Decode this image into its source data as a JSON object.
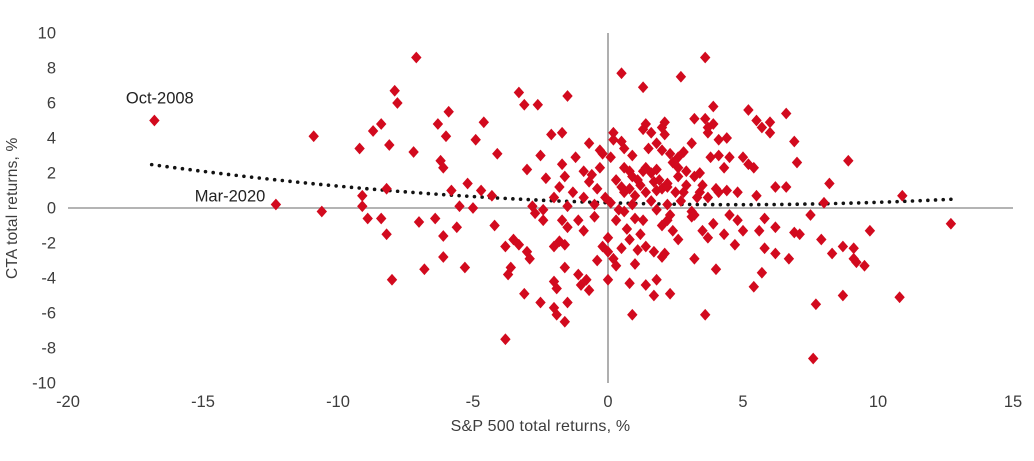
{
  "chart_data": {
    "type": "scatter",
    "xlabel": "S&P 500 total returns, %",
    "ylabel": "CTA total returns, %",
    "xlim": [
      -20,
      15
    ],
    "ylim": [
      -10,
      10
    ],
    "x_ticks": [
      -20,
      -15,
      -10,
      -5,
      0,
      5,
      10,
      15
    ],
    "y_ticks": [
      10,
      8,
      6,
      4,
      2,
      0,
      -2,
      -4,
      -6,
      -8,
      -10
    ],
    "grid": false,
    "legend": "none",
    "axis_color": "#9b9b9b",
    "tick_text_color": "#3d3d3d",
    "marker": {
      "shape": "diamond",
      "color": "#d20a1e",
      "half_width": 5.2,
      "half_height": 5.9
    },
    "trendline": {
      "style": "dotted",
      "color": "#121212",
      "x_start": -16.9,
      "x_end": 12.7,
      "coef": {
        "a": 0.3,
        "b": -0.0463,
        "c": 0.00489
      },
      "dot_count": 104,
      "dot_radius": 1.8
    },
    "annotations": [
      {
        "text": "Oct-2008",
        "label_x": -16.6,
        "label_y": 6.3
      },
      {
        "text": "Mar-2020",
        "label_x": -14.0,
        "label_y": 0.68
      }
    ],
    "points": [
      [
        -16.8,
        5.0
      ],
      [
        -12.3,
        0.2
      ],
      [
        -7.1,
        8.6
      ],
      [
        -7.9,
        6.7
      ],
      [
        -7.8,
        6.0
      ],
      [
        -5.9,
        5.5
      ],
      [
        -6.3,
        4.8
      ],
      [
        -6.0,
        4.1
      ],
      [
        -4.6,
        4.9
      ],
      [
        -10.9,
        4.1
      ],
      [
        -8.7,
        4.4
      ],
      [
        -8.4,
        4.8
      ],
      [
        -9.2,
        3.4
      ],
      [
        -8.1,
        3.6
      ],
      [
        -4.9,
        3.9
      ],
      [
        -7.2,
        3.2
      ],
      [
        -4.1,
        3.1
      ],
      [
        -6.2,
        2.7
      ],
      [
        -6.1,
        2.3
      ],
      [
        -5.2,
        1.4
      ],
      [
        -5.8,
        1.0
      ],
      [
        -4.7,
        1.0
      ],
      [
        -4.3,
        0.7
      ],
      [
        -8.2,
        1.1
      ],
      [
        -9.1,
        0.7
      ],
      [
        -9.1,
        0.1
      ],
      [
        -10.6,
        -0.2
      ],
      [
        3.6,
        8.6
      ],
      [
        0.5,
        7.7
      ],
      [
        2.7,
        7.5
      ],
      [
        1.3,
        6.9
      ],
      [
        -3.3,
        6.6
      ],
      [
        -1.5,
        6.4
      ],
      [
        -3.1,
        5.9
      ],
      [
        -2.6,
        5.9
      ],
      [
        3.9,
        5.8
      ],
      [
        5.2,
        5.6
      ],
      [
        5.5,
        5.0
      ],
      [
        3.6,
        5.1
      ],
      [
        3.2,
        5.1
      ],
      [
        3.9,
        4.8
      ],
      [
        5.7,
        4.6
      ],
      [
        1.4,
        4.8
      ],
      [
        2.1,
        4.9
      ],
      [
        0.2,
        4.3
      ],
      [
        0.5,
        3.8
      ],
      [
        -2.1,
        4.2
      ],
      [
        -1.7,
        4.3
      ],
      [
        -0.7,
        3.7
      ],
      [
        0.6,
        3.4
      ],
      [
        1.8,
        3.7
      ],
      [
        2.1,
        4.2
      ],
      [
        3.7,
        4.3
      ],
      [
        4.1,
        3.9
      ],
      [
        3.1,
        3.7
      ],
      [
        2.8,
        3.2
      ],
      [
        2.3,
        3.1
      ],
      [
        -0.2,
        3.1
      ],
      [
        -2.5,
        3.0
      ],
      [
        -1.7,
        2.5
      ],
      [
        -3.0,
        2.2
      ],
      [
        -1.6,
        1.8
      ],
      [
        -2.3,
        1.7
      ],
      [
        0.1,
        2.9
      ],
      [
        0.6,
        2.3
      ],
      [
        0.8,
        2.1
      ],
      [
        0.9,
        1.8
      ],
      [
        1.3,
        2.1
      ],
      [
        1.4,
        2.3
      ],
      [
        1.6,
        2.0
      ],
      [
        1.8,
        2.2
      ],
      [
        1.7,
        1.5
      ],
      [
        1.9,
        1.6
      ],
      [
        1.2,
        1.3
      ],
      [
        0.8,
        1.1
      ],
      [
        0.6,
        0.9
      ],
      [
        1.0,
        0.7
      ],
      [
        1.4,
        0.9
      ],
      [
        1.8,
        1.0
      ],
      [
        2.0,
        1.1
      ],
      [
        2.2,
        1.4
      ],
      [
        2.6,
        2.3
      ],
      [
        2.9,
        2.1
      ],
      [
        3.2,
        1.8
      ],
      [
        3.4,
        2.0
      ],
      [
        3.8,
        2.9
      ],
      [
        4.1,
        3.0
      ],
      [
        4.3,
        2.3
      ],
      [
        4.5,
        2.9
      ],
      [
        5.0,
        2.9
      ],
      [
        5.2,
        2.5
      ],
      [
        5.4,
        2.3
      ],
      [
        2.5,
        0.9
      ],
      [
        2.8,
        0.9
      ],
      [
        3.3,
        0.6
      ],
      [
        3.7,
        0.6
      ],
      [
        4.0,
        1.1
      ],
      [
        4.4,
        1.0
      ],
      [
        4.8,
        0.9
      ],
      [
        5.5,
        0.7
      ],
      [
        -0.7,
        1.5
      ],
      [
        -0.4,
        1.1
      ],
      [
        -0.9,
        0.6
      ],
      [
        -0.1,
        0.6
      ],
      [
        0.1,
        0.3
      ],
      [
        -2.0,
        0.6
      ],
      [
        -2.8,
        0.1
      ],
      [
        -2.4,
        -0.1
      ],
      [
        -1.5,
        0.1
      ],
      [
        1.3,
        4.5
      ],
      [
        1.6,
        4.3
      ],
      [
        2.0,
        4.6
      ],
      [
        2.6,
        2.9
      ],
      [
        3.7,
        4.6
      ],
      [
        4.4,
        4.0
      ],
      [
        0.2,
        3.9
      ],
      [
        -0.3,
        3.3
      ],
      [
        -0.6,
        1.9
      ],
      [
        2.2,
        1.2
      ],
      [
        3.4,
        0.9
      ],
      [
        4.1,
        0.9
      ],
      [
        2.3,
        -0.4
      ],
      [
        3.1,
        -0.2
      ],
      [
        6.6,
        5.4
      ],
      [
        6.0,
        4.9
      ],
      [
        6.0,
        4.3
      ],
      [
        6.9,
        3.8
      ],
      [
        7.0,
        2.6
      ],
      [
        8.9,
        2.7
      ],
      [
        6.2,
        1.2
      ],
      [
        6.6,
        1.2
      ],
      [
        8.2,
        1.4
      ],
      [
        8.0,
        0.3
      ],
      [
        10.9,
        0.7
      ],
      [
        -8.9,
        -0.6
      ],
      [
        -8.4,
        -0.6
      ],
      [
        -8.2,
        -1.5
      ],
      [
        -8.0,
        -4.1
      ],
      [
        -7.0,
        -0.8
      ],
      [
        -6.4,
        -0.6
      ],
      [
        -6.1,
        -1.6
      ],
      [
        -5.6,
        -1.1
      ],
      [
        -6.1,
        -2.8
      ],
      [
        -6.8,
        -3.5
      ],
      [
        -5.3,
        -3.4
      ],
      [
        -5.5,
        0.1
      ],
      [
        -5.0,
        0.0
      ],
      [
        -4.2,
        -1.0
      ],
      [
        -3.8,
        -2.2
      ],
      [
        -3.7,
        -3.8
      ],
      [
        -3.8,
        -7.5
      ],
      [
        -2.7,
        -0.3
      ],
      [
        -2.4,
        -0.7
      ],
      [
        -1.7,
        -0.7
      ],
      [
        -1.5,
        -1.1
      ],
      [
        -1.1,
        -0.7
      ],
      [
        -0.9,
        -1.3
      ],
      [
        -0.5,
        -0.5
      ],
      [
        0.3,
        -0.7
      ],
      [
        0.6,
        -0.2
      ],
      [
        1.0,
        -0.6
      ],
      [
        1.3,
        -0.7
      ],
      [
        1.8,
        -0.1
      ],
      [
        2.0,
        -1.0
      ],
      [
        2.2,
        -0.7
      ],
      [
        2.4,
        -1.3
      ],
      [
        3.1,
        -0.5
      ],
      [
        3.2,
        -0.4
      ],
      [
        3.5,
        -1.3
      ],
      [
        3.7,
        -1.7
      ],
      [
        4.5,
        -0.4
      ],
      [
        4.8,
        -0.7
      ],
      [
        5.0,
        -1.3
      ],
      [
        5.6,
        -1.3
      ],
      [
        5.8,
        -0.6
      ],
      [
        -3.5,
        -1.8
      ],
      [
        -3.3,
        -2.1
      ],
      [
        -3.0,
        -2.5
      ],
      [
        -2.9,
        -2.9
      ],
      [
        -2.0,
        -2.2
      ],
      [
        -1.8,
        -1.9
      ],
      [
        -1.6,
        -2.1
      ],
      [
        0.0,
        -1.7
      ],
      [
        0.0,
        -2.5
      ],
      [
        0.2,
        -2.9
      ],
      [
        0.5,
        -2.3
      ],
      [
        0.8,
        -1.8
      ],
      [
        1.1,
        -2.4
      ],
      [
        1.4,
        -2.2
      ],
      [
        1.7,
        -2.5
      ],
      [
        2.0,
        -2.8
      ],
      [
        2.1,
        -2.6
      ],
      [
        3.2,
        -2.9
      ],
      [
        4.0,
        -3.5
      ],
      [
        4.7,
        -2.1
      ],
      [
        5.8,
        -2.3
      ],
      [
        -3.6,
        -3.4
      ],
      [
        -3.1,
        -4.9
      ],
      [
        -2.0,
        -4.2
      ],
      [
        -1.9,
        -4.6
      ],
      [
        -1.6,
        -3.4
      ],
      [
        -1.1,
        -3.8
      ],
      [
        -0.8,
        -4.1
      ],
      [
        -0.7,
        -4.7
      ],
      [
        -1.0,
        -4.4
      ],
      [
        0.0,
        -4.1
      ],
      [
        0.8,
        -4.3
      ],
      [
        1.4,
        -4.4
      ],
      [
        1.8,
        -4.1
      ],
      [
        1.7,
        -5.0
      ],
      [
        2.3,
        -4.9
      ],
      [
        5.4,
        -4.5
      ],
      [
        5.7,
        -3.7
      ],
      [
        -2.5,
        -5.4
      ],
      [
        -2.0,
        -5.7
      ],
      [
        -1.5,
        -5.4
      ],
      [
        -1.9,
        -6.1
      ],
      [
        -1.6,
        -6.5
      ],
      [
        0.9,
        -6.1
      ],
      [
        3.6,
        -6.1
      ],
      [
        7.5,
        -0.4
      ],
      [
        6.2,
        -1.1
      ],
      [
        6.9,
        -1.4
      ],
      [
        7.1,
        -1.5
      ],
      [
        7.9,
        -1.8
      ],
      [
        9.7,
        -1.3
      ],
      [
        12.7,
        -0.9
      ],
      [
        6.2,
        -2.6
      ],
      [
        6.7,
        -2.9
      ],
      [
        8.3,
        -2.6
      ],
      [
        8.7,
        -2.2
      ],
      [
        9.1,
        -2.3
      ],
      [
        9.1,
        -2.9
      ],
      [
        9.2,
        -3.1
      ],
      [
        9.5,
        -3.3
      ],
      [
        8.7,
        -5.0
      ],
      [
        7.7,
        -5.5
      ],
      [
        10.8,
        -5.1
      ],
      [
        7.6,
        -8.6
      ],
      [
        0.3,
        1.6
      ],
      [
        0.5,
        1.2
      ],
      [
        1.1,
        1.6
      ],
      [
        2.4,
        2.6
      ],
      [
        2.0,
        3.3
      ],
      [
        1.5,
        3.4
      ],
      [
        0.9,
        3.0
      ],
      [
        -0.3,
        2.3
      ],
      [
        -1.2,
        2.9
      ],
      [
        -0.9,
        2.1
      ],
      [
        2.9,
        1.3
      ],
      [
        3.5,
        1.3
      ],
      [
        2.6,
        1.8
      ],
      [
        -0.5,
        0.2
      ],
      [
        0.4,
        -0.1
      ],
      [
        0.9,
        0.2
      ],
      [
        1.6,
        0.4
      ],
      [
        2.2,
        0.2
      ],
      [
        2.7,
        0.4
      ],
      [
        -1.3,
        0.9
      ],
      [
        -1.8,
        1.2
      ],
      [
        0.7,
        -1.2
      ],
      [
        1.2,
        -1.5
      ],
      [
        2.6,
        -1.8
      ],
      [
        0.3,
        -3.3
      ],
      [
        1.0,
        -3.2
      ],
      [
        -0.4,
        -3.0
      ],
      [
        -0.2,
        -2.2
      ],
      [
        4.3,
        -1.5
      ],
      [
        3.9,
        -0.9
      ]
    ]
  }
}
